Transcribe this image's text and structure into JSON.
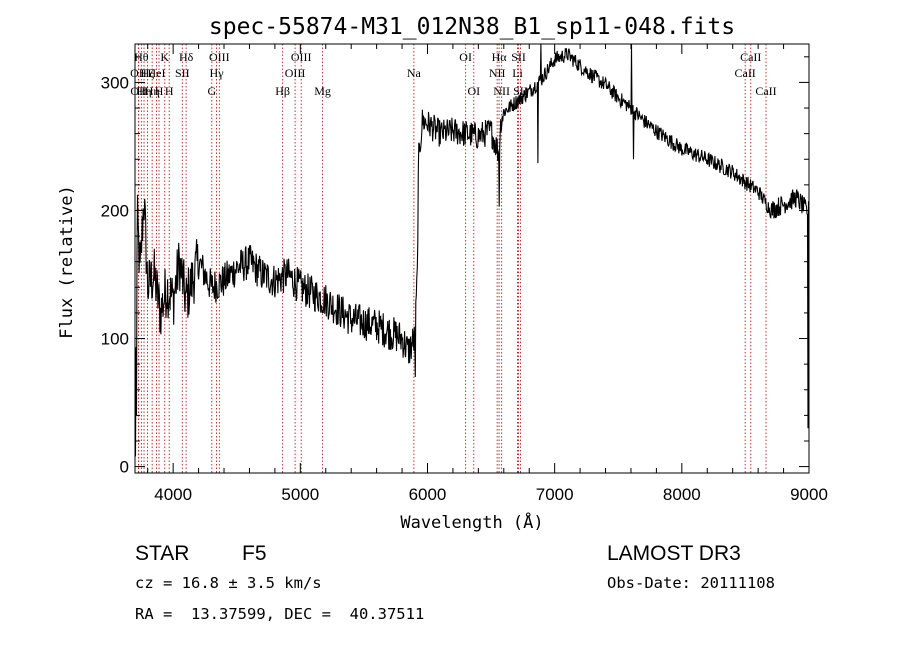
{
  "chart_data": {
    "type": "line",
    "title": "spec-55874-M31_012N38_B1_sp11-048.fits",
    "xlabel": "Wavelength (Å)",
    "ylabel": "Flux (relative)",
    "xlim": [
      3700,
      9000
    ],
    "ylim": [
      -5,
      330
    ],
    "xticks": [
      4000,
      5000,
      6000,
      7000,
      8000,
      9000
    ],
    "yticks": [
      0,
      100,
      200,
      300
    ],
    "grid": false,
    "series_color": "#000000",
    "line_marker_color": "#b22222",
    "spectrum_anchors": [
      [
        3700,
        30
      ],
      [
        3710,
        120
      ],
      [
        3720,
        190
      ],
      [
        3740,
        150
      ],
      [
        3770,
        210
      ],
      [
        3800,
        140
      ],
      [
        3850,
        150
      ],
      [
        3900,
        120
      ],
      [
        3950,
        140
      ],
      [
        4000,
        130
      ],
      [
        4050,
        160
      ],
      [
        4100,
        130
      ],
      [
        4200,
        160
      ],
      [
        4300,
        140
      ],
      [
        4400,
        145
      ],
      [
        4500,
        155
      ],
      [
        4600,
        160
      ],
      [
        4700,
        150
      ],
      [
        4800,
        145
      ],
      [
        4900,
        150
      ],
      [
        5000,
        140
      ],
      [
        5200,
        130
      ],
      [
        5400,
        115
      ],
      [
        5600,
        110
      ],
      [
        5800,
        100
      ],
      [
        5850,
        90
      ],
      [
        5900,
        100
      ],
      [
        5920,
        150
      ],
      [
        5930,
        240
      ],
      [
        5960,
        270
      ],
      [
        6000,
        268
      ],
      [
        6100,
        260
      ],
      [
        6200,
        262
      ],
      [
        6300,
        260
      ],
      [
        6400,
        258
      ],
      [
        6500,
        262
      ],
      [
        6560,
        245
      ],
      [
        6580,
        272
      ],
      [
        6600,
        277
      ],
      [
        6700,
        285
      ],
      [
        6800,
        293
      ],
      [
        6900,
        303
      ],
      [
        7000,
        318
      ],
      [
        7100,
        322
      ],
      [
        7200,
        313
      ],
      [
        7300,
        305
      ],
      [
        7400,
        298
      ],
      [
        7500,
        288
      ],
      [
        7600,
        280
      ],
      [
        7700,
        270
      ],
      [
        7800,
        262
      ],
      [
        7900,
        255
      ],
      [
        8000,
        248
      ],
      [
        8100,
        244
      ],
      [
        8200,
        240
      ],
      [
        8300,
        235
      ],
      [
        8400,
        230
      ],
      [
        8500,
        222
      ],
      [
        8600,
        215
      ],
      [
        8700,
        200
      ],
      [
        8800,
        205
      ],
      [
        8900,
        210
      ],
      [
        8980,
        200
      ],
      [
        9000,
        200
      ]
    ],
    "dips": [
      {
        "x": 3705,
        "y": 8
      },
      {
        "x": 3712,
        "y": 40
      },
      {
        "x": 5905,
        "y": 70
      },
      {
        "x": 6563,
        "y": 203
      },
      {
        "x": 6869,
        "y": 237
      },
      {
        "x": 8990,
        "y": 30
      }
    ],
    "spikes": [
      {
        "x": 6890,
        "y": 350
      },
      {
        "x": 7605,
        "y": 343
      },
      {
        "x": 7620,
        "y": 240
      }
    ],
    "spectral_lines": [
      {
        "x": 3727,
        "label": "OII",
        "row": 2
      },
      {
        "x": 3729,
        "label": "OII",
        "row": 3
      },
      {
        "x": 3750,
        "label": "Hθ",
        "row": 1
      },
      {
        "x": 3771,
        "label": "Hη",
        "row": 3
      },
      {
        "x": 3798,
        "label": "Hζ",
        "row": 2
      },
      {
        "x": 3835,
        "label": "Hη",
        "row": 3
      },
      {
        "x": 3869,
        "label": "HeI",
        "row": 2
      },
      {
        "x": 3889,
        "label": "H",
        "row": 3
      },
      {
        "x": 3934,
        "label": "K",
        "row": 1
      },
      {
        "x": 3969,
        "label": "H",
        "row": 3
      },
      {
        "x": 4072,
        "label": "SII",
        "row": 2
      },
      {
        "x": 4102,
        "label": "Hδ",
        "row": 1
      },
      {
        "x": 4304,
        "label": "G",
        "row": 3
      },
      {
        "x": 4341,
        "label": "Hγ",
        "row": 2
      },
      {
        "x": 4363,
        "label": "OIII",
        "row": 1
      },
      {
        "x": 4861,
        "label": "Hβ",
        "row": 3
      },
      {
        "x": 4959,
        "label": "OIII",
        "row": 2
      },
      {
        "x": 5007,
        "label": "OIII",
        "row": 1
      },
      {
        "x": 5175,
        "label": "Mg",
        "row": 3
      },
      {
        "x": 5893,
        "label": "Na",
        "row": 2
      },
      {
        "x": 6300,
        "label": "OI",
        "row": 1
      },
      {
        "x": 6364,
        "label": "OI",
        "row": 3
      },
      {
        "x": 6548,
        "label": "NII",
        "row": 2
      },
      {
        "x": 6563,
        "label": "Hα",
        "row": 1
      },
      {
        "x": 6583,
        "label": "NII",
        "row": 3
      },
      {
        "x": 6708,
        "label": "Li",
        "row": 2
      },
      {
        "x": 6716,
        "label": "SII",
        "row": 1
      },
      {
        "x": 6731,
        "label": "SII",
        "row": 3
      },
      {
        "x": 8498,
        "label": "CaII",
        "row": 2
      },
      {
        "x": 8542,
        "label": "CaII",
        "row": 1
      },
      {
        "x": 8662,
        "label": "CaII",
        "row": 3
      }
    ]
  },
  "info": {
    "object_class": "STAR",
    "subclass": "F5",
    "survey": "LAMOST DR3",
    "redshift": "cz = 16.8 ± 3.5 km/s",
    "obs_date": "Obs-Date: 20111108",
    "coords": "RA =  13.37599, DEC =  40.37511"
  }
}
